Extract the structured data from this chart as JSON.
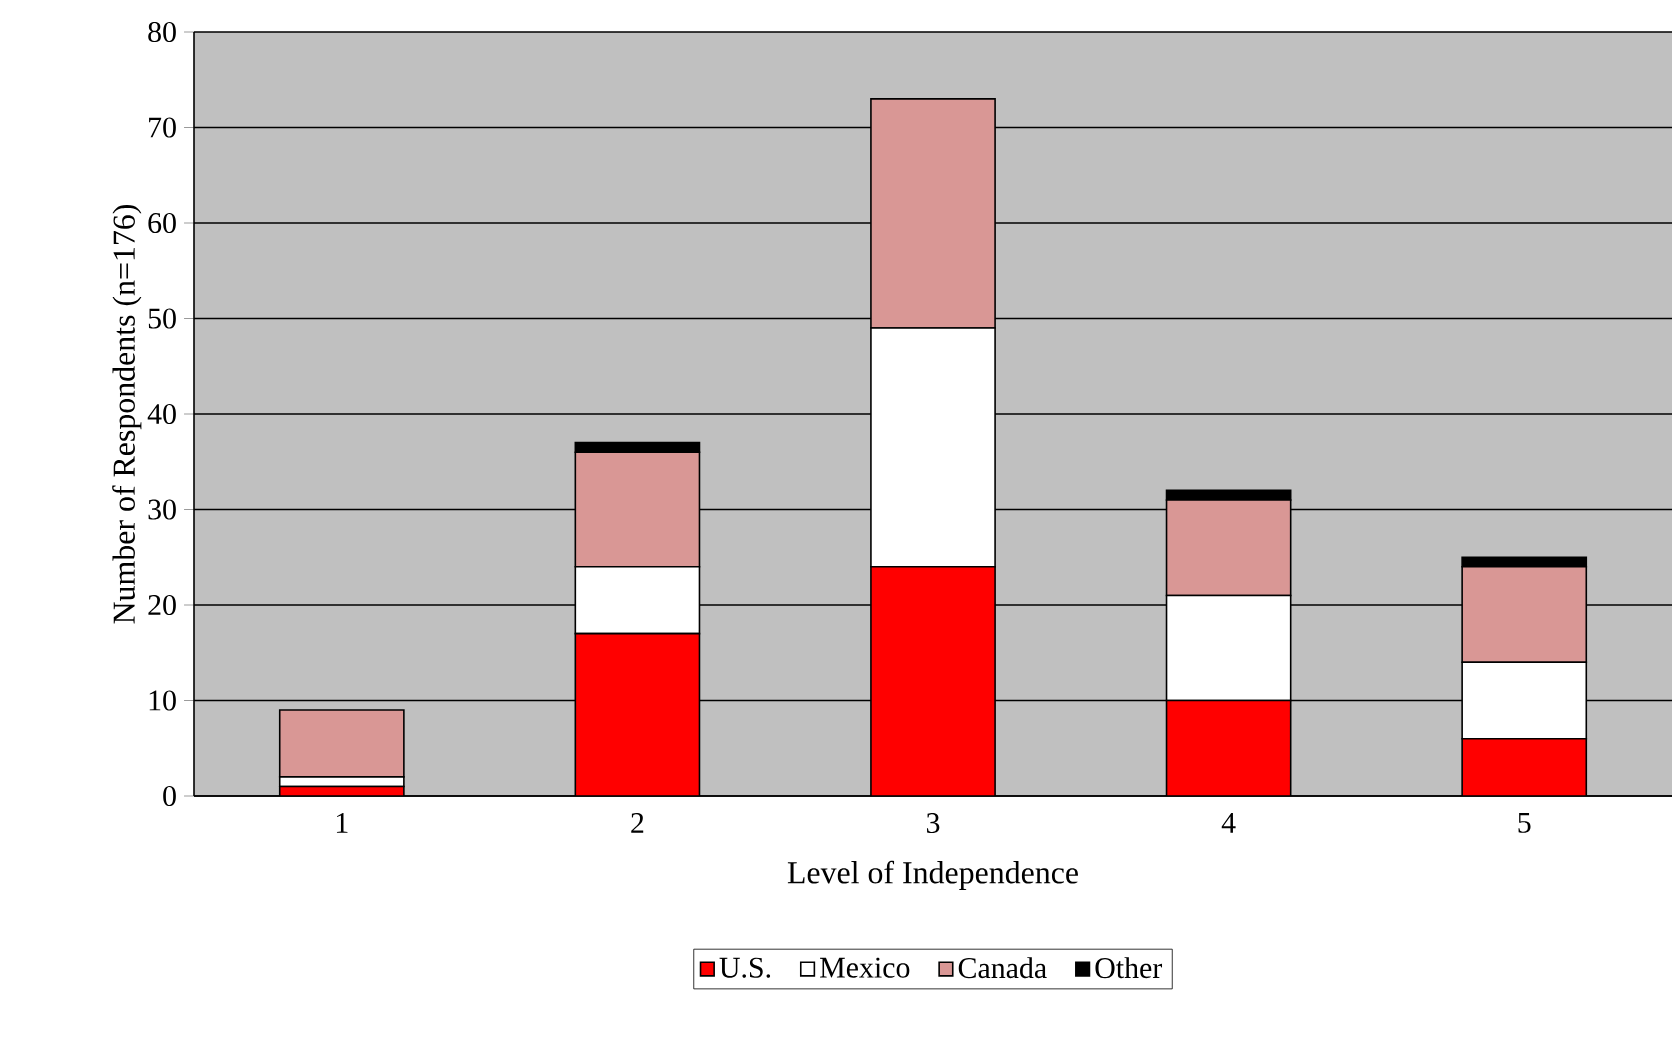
{
  "chart_data": {
    "type": "bar",
    "stacked": true,
    "xlabel": "Level of Independence",
    "ylabel": "Number of Respondents (n=176)",
    "categories": [
      "1",
      "2",
      "3",
      "4",
      "5"
    ],
    "series": [
      {
        "name": "U.S.",
        "color": "#ff0000",
        "values": [
          1,
          17,
          24,
          10,
          6
        ]
      },
      {
        "name": "Mexico",
        "color": "#ffffff",
        "values": [
          1,
          7,
          25,
          11,
          8
        ]
      },
      {
        "name": "Canada",
        "color": "#d99795",
        "values": [
          7,
          12,
          24,
          10,
          10
        ]
      },
      {
        "name": "Other",
        "color": "#000000",
        "values": [
          0,
          1,
          0,
          1,
          1
        ]
      }
    ],
    "ylim": [
      0,
      80
    ],
    "yticks": [
      0,
      10,
      20,
      30,
      40,
      50,
      60,
      70,
      80
    ],
    "grid": "y",
    "legend": "bottom"
  }
}
